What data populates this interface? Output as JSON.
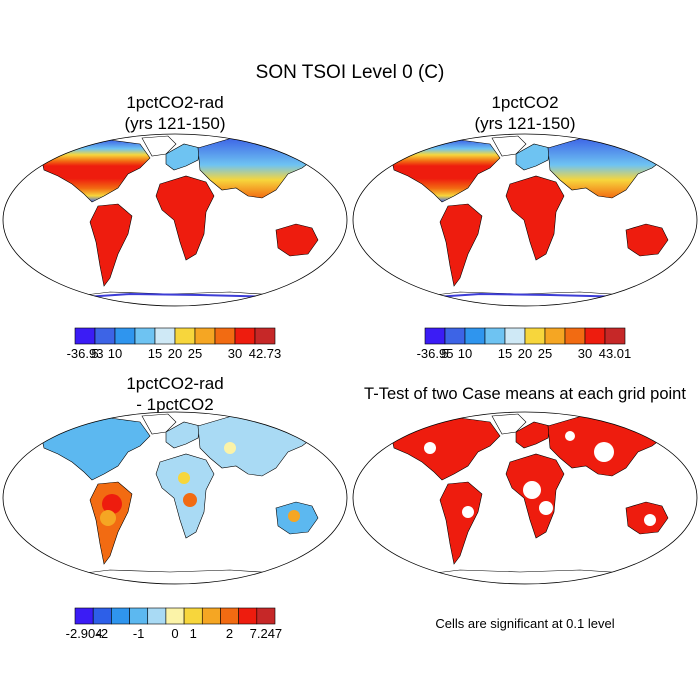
{
  "page": {
    "title": "SON TSOI Level 0 (C)"
  },
  "panels": [
    {
      "id": "p1",
      "title_line1": "1pctCO2-rad",
      "title_line2": "(yrs 121-150)",
      "kind": "field",
      "colorbar": {
        "colors": [
          "#3b1cf5",
          "#3d64e6",
          "#2f95ee",
          "#6ec3f2",
          "#cfe9f6",
          "#f7d63c",
          "#f5a623",
          "#f26b12",
          "#ee1c0e",
          "#c62828"
        ],
        "labels": [
          "-36.93",
          "5",
          "10",
          "15",
          "20",
          "25",
          "30",
          "42.73"
        ]
      }
    },
    {
      "id": "p2",
      "title_line1": "1pctCO2",
      "title_line2": "(yrs 121-150)",
      "kind": "field",
      "colorbar": {
        "colors": [
          "#3b1cf5",
          "#3d64e6",
          "#2f95ee",
          "#6ec3f2",
          "#cfe9f6",
          "#f7d63c",
          "#f5a623",
          "#f26b12",
          "#ee1c0e",
          "#c62828"
        ],
        "labels": [
          "-36.95",
          "5",
          "10",
          "15",
          "20",
          "25",
          "30",
          "43.01"
        ]
      }
    },
    {
      "id": "p3",
      "title_line1": "1pctCO2-rad",
      "title_line2": "- 1pctCO2",
      "kind": "difference",
      "colorbar": {
        "colors": [
          "#3b1cf5",
          "#2d5fe8",
          "#2f95ee",
          "#5cb8f0",
          "#a9daf4",
          "#fbf3a8",
          "#f7d63c",
          "#f5a623",
          "#f26b12",
          "#ee1c0e",
          "#c62828"
        ],
        "labels": [
          "-2.904",
          "-2",
          "-1",
          "0",
          "1",
          "2",
          "7.247"
        ]
      }
    },
    {
      "id": "p4",
      "title_line1": "T-Test of two Case means at each grid point",
      "title_line2": "",
      "kind": "significance",
      "note": "Cells are significant at 0.1 level"
    }
  ]
}
